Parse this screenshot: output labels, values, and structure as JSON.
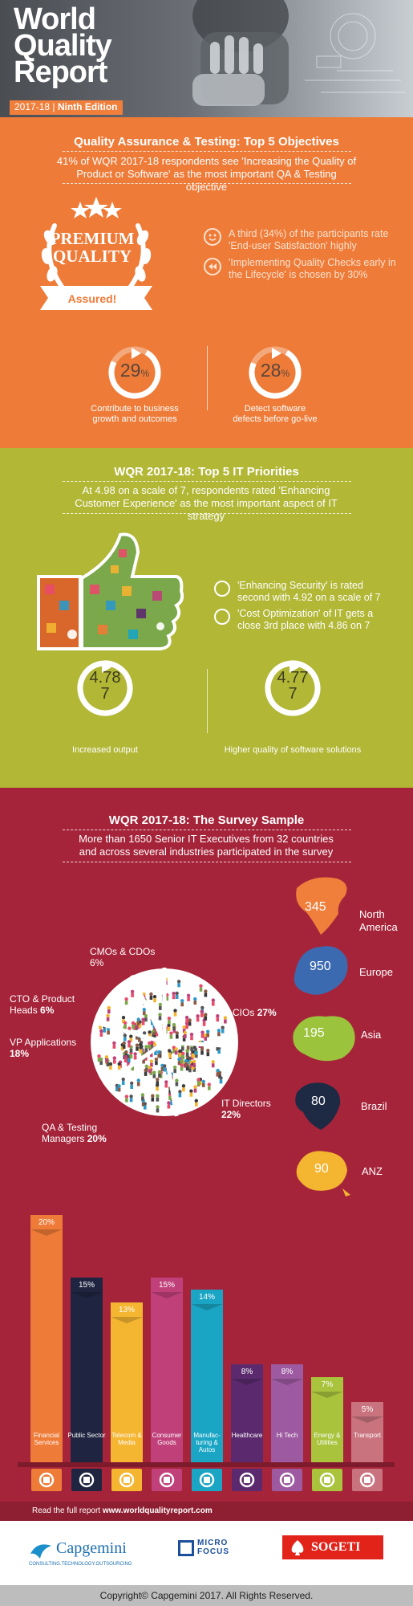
{
  "header": {
    "title_line1": "World",
    "title_line2": "Quality",
    "title_line3": "Report",
    "edition_year": "2017-18",
    "edition_name": "Ninth Edition"
  },
  "objectives": {
    "heading": "Quality Assurance & Testing: Top 5 Objectives",
    "subheading": "41% of WQR 2017-18 respondents see 'Increasing the Quality of Product or Software' as the most important QA & Testing objective",
    "badge_line1": "PREMIUM",
    "badge_line2": "QUALITY",
    "badge_ribbon": "Assured!",
    "bullets": [
      "A third (34%) of the participants rate 'End-user Satisfaction' highly",
      "'Implementing Quality Checks early in the Lifecycle' is chosen by 30%"
    ],
    "stats": [
      {
        "value": "29",
        "unit": "%",
        "caption": "Contribute to business growth and outcomes",
        "fraction": 0.29
      },
      {
        "value": "28",
        "unit": "%",
        "caption": "Detect software defects before go-live",
        "fraction": 0.28
      }
    ]
  },
  "priorities": {
    "heading": "WQR 2017-18: Top 5 IT Priorities",
    "subheading": "At 4.98 on a scale of 7, respondents rated 'Enhancing Customer Experience' as the most important aspect of IT strategy",
    "bullets": [
      "'Enhancing Security' is rated second with 4.92 on a scale of 7",
      "'Cost Optimization' of IT gets a close 3rd place with 4.86 on 7"
    ],
    "stats": [
      {
        "value": "4.78",
        "scale": "7",
        "caption": "Increased output",
        "fraction": 0.683
      },
      {
        "value": "4.77",
        "scale": "7",
        "caption": "Higher quality of software solutions",
        "fraction": 0.681
      }
    ]
  },
  "sample": {
    "heading": "WQR 2017-18: The Survey Sample",
    "subheading": "More than 1650 Senior IT Executives from 32 countries and across several industries participated in the survey",
    "roles": [
      {
        "label": "CMOs & CDOs",
        "pct": "6%"
      },
      {
        "label": "CTO & Product Heads",
        "pct": "6%"
      },
      {
        "label": "VP Applications",
        "pct": "18%"
      },
      {
        "label": "QA & Testing Managers",
        "pct": "20%"
      },
      {
        "label": "IT Directors",
        "pct": "22%"
      },
      {
        "label": "CIOs",
        "pct": "27%"
      }
    ],
    "regions": [
      {
        "name": "North America",
        "count": "345",
        "color": "#f07f3c"
      },
      {
        "name": "Europe",
        "count": "950",
        "color": "#3c6ab0"
      },
      {
        "name": "Asia",
        "count": "195",
        "color": "#9bc33c"
      },
      {
        "name": "Brazil",
        "count": "80",
        "color": "#1e2a44"
      },
      {
        "name": "ANZ",
        "count": "90",
        "color": "#f4b531"
      }
    ]
  },
  "chart_data": {
    "type": "bar",
    "categories": [
      "Financial Services",
      "Public Sector",
      "Telecom & Media",
      "Consumer Goods",
      "Manufacturing & Autos",
      "Healthcare",
      "Hi Tech",
      "Energy & Utilities",
      "Transport"
    ],
    "category_labels": [
      "Financial Services",
      "Public Sector",
      "Telecom & Media",
      "Consumer Goods",
      "Manufac-turing & Autos",
      "Healthcare",
      "Hi Tech",
      "Energy & Utilities",
      "Transport"
    ],
    "values": [
      20,
      15,
      13,
      15,
      14,
      8,
      8,
      7,
      5
    ],
    "value_labels": [
      "20%",
      "15%",
      "13%",
      "15%",
      "14%",
      "8%",
      "8%",
      "7%",
      "5%"
    ],
    "colors": [
      "#ee7b38",
      "#1f2540",
      "#f4b531",
      "#c0407a",
      "#1aa5c4",
      "#5b2a6e",
      "#9d5aa0",
      "#a9c33c",
      "#c9737e"
    ],
    "icons": [
      "money-icon",
      "building-icon",
      "satellite-icon",
      "cart-icon",
      "gear-icon",
      "heart-hands-icon",
      "airplane-icon",
      "bulb-icon",
      "truck-icon"
    ],
    "title": "",
    "xlabel": "",
    "ylabel": "",
    "ylim": [
      0,
      20
    ]
  },
  "footer": {
    "read_prefix": "Read the full report",
    "read_link": "www.worldqualityreport.com",
    "logos": [
      "Capgemini",
      "CONSULTING.TECHNOLOGY.OUTSOURCING",
      "MICRO FOCUS",
      "SOGETI"
    ],
    "copyright": "Copyright© Capgemini 2017. All Rights Reserved."
  }
}
